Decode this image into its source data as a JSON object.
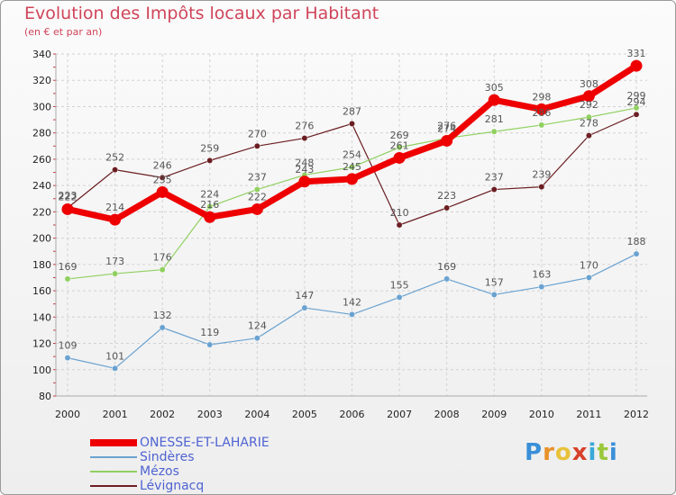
{
  "header": {
    "title": "Evolution des Impôts locaux par Habitant",
    "subtitle": "(en € et par an)"
  },
  "logo": {
    "letters": [
      "P",
      "r",
      "o",
      "x",
      "i",
      "t",
      "i"
    ],
    "colors": [
      "#3a8fd8",
      "#e8902a",
      "#e8c23a",
      "#d8402a",
      "#3aa8d8",
      "#9ac83a",
      "#3a8fd8"
    ]
  },
  "chart_data": {
    "type": "line",
    "x": [
      "2000",
      "2001",
      "2002",
      "2003",
      "2004",
      "2005",
      "2006",
      "2007",
      "2008",
      "2009",
      "2010",
      "2011",
      "2012"
    ],
    "ylim": [
      80,
      340
    ],
    "yticks": [
      80,
      100,
      120,
      140,
      160,
      180,
      200,
      220,
      240,
      260,
      280,
      300,
      320,
      340
    ],
    "grid": true,
    "legend_position": "bottom-left",
    "series": [
      {
        "name": "Lévignacq",
        "color": "#6b1e22",
        "line_width": 1.2,
        "marker_radius": 3.2,
        "values": [
          223,
          252,
          246,
          259,
          270,
          276,
          287,
          210,
          223,
          237,
          239,
          278,
          294
        ]
      },
      {
        "name": "Mézos",
        "color": "#90d060",
        "line_width": 1.2,
        "marker_radius": 3.2,
        "values": [
          169,
          173,
          176,
          224,
          237,
          248,
          254,
          269,
          276,
          281,
          286,
          292,
          299
        ]
      },
      {
        "name": "Sindères",
        "color": "#6aa2d0",
        "line_width": 1.2,
        "marker_radius": 3.2,
        "values": [
          109,
          101,
          132,
          119,
          124,
          147,
          142,
          155,
          169,
          157,
          163,
          170,
          188
        ]
      },
      {
        "name": "ONESSE-ET-LAHARIE",
        "color": "#ee0000",
        "line_width": 7,
        "marker_radius": 6.5,
        "values": [
          222,
          214,
          235,
          216,
          222,
          243,
          245,
          261,
          274,
          305,
          298,
          308,
          331
        ]
      }
    ],
    "legend_order": [
      "ONESSE-ET-LAHARIE",
      "Sindères",
      "Mézos",
      "Lévignacq"
    ]
  }
}
